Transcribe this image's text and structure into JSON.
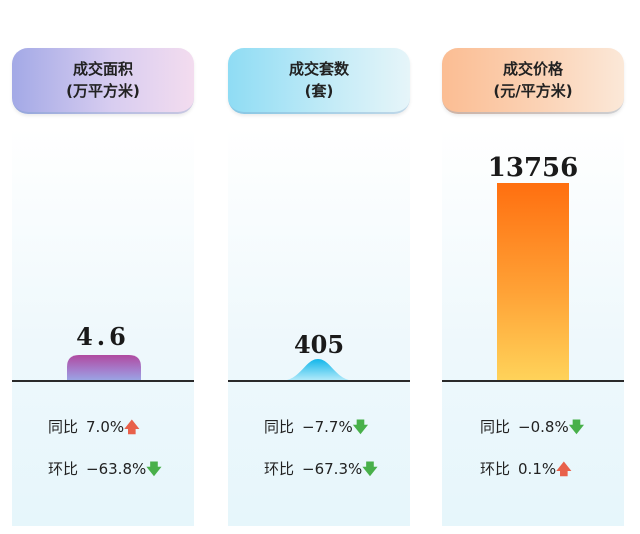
{
  "chart_data": [
    {
      "type": "bar",
      "title": "成交面积",
      "unit": "(万平方米)",
      "values": [
        4.6
      ],
      "value_label": "4.6",
      "yoy_label": "同比",
      "yoy": "7.0%",
      "yoy_dir": "up",
      "mom_label": "环比",
      "mom": "−63.8%",
      "mom_dir": "down"
    },
    {
      "type": "bar",
      "title": "成交套数",
      "unit": "(套)",
      "values": [
        405
      ],
      "value_label": "405",
      "yoy_label": "同比",
      "yoy": "−7.7%",
      "yoy_dir": "down",
      "mom_label": "环比",
      "mom": "−67.3%",
      "mom_dir": "down"
    },
    {
      "type": "bar",
      "title": "成交价格",
      "unit": "(元/平方米)",
      "values": [
        13756
      ],
      "value_label": "13756",
      "yoy_label": "同比",
      "yoy": "−0.8%",
      "yoy_dir": "down",
      "mom_label": "环比",
      "mom": "0.1%",
      "mom_dir": "up"
    }
  ],
  "colors": {
    "up_arrow": "#e8604a",
    "down_arrow": "#48b04a",
    "bar_area": "#c2559a",
    "bar_units": "#1ab3e8",
    "bar_price": "#ff7a12"
  }
}
